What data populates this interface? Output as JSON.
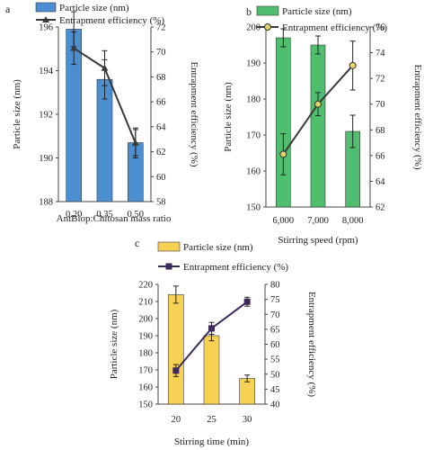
{
  "chart_data": [
    {
      "type": "bar",
      "panel_label": "a",
      "categories": [
        "0.20",
        "0.35",
        "0.50"
      ],
      "xlabel": "AntBiop:Chitosan mass ratio",
      "ylabel": "Particle size (nm)",
      "y2label": "Entrapment efficiency (%)",
      "ylim": [
        188,
        196
      ],
      "yticks": [
        188,
        190,
        192,
        194,
        196
      ],
      "y2lim": [
        58,
        72
      ],
      "y2ticks": [
        58,
        60,
        62,
        64,
        66,
        68,
        70,
        72
      ],
      "legend_position": "top",
      "series": [
        {
          "name": "Particle size (nm)",
          "kind": "bar",
          "axis": "left",
          "color": "#4b8fd1",
          "values": [
            195.9,
            193.6,
            190.7
          ],
          "errors": [
            0.8,
            0.9,
            0.6
          ]
        },
        {
          "name": "Entrapment efficiency (%)",
          "kind": "line",
          "axis": "right",
          "color": "#3a3a3a",
          "marker": "triangle",
          "values": [
            70.3,
            68.7,
            62.7
          ],
          "errors": [
            1.3,
            1.4,
            1.2
          ]
        }
      ]
    },
    {
      "type": "bar",
      "panel_label": "b",
      "categories": [
        "6,000",
        "7,000",
        "8,000"
      ],
      "xlabel": "Stirring speed (rpm)",
      "ylabel": "Particle size (nm)",
      "y2label": "Entrapment efficiency (%)",
      "ylim": [
        150,
        200
      ],
      "yticks": [
        150,
        160,
        170,
        180,
        190,
        200
      ],
      "y2lim": [
        62,
        76
      ],
      "y2ticks": [
        62,
        64,
        66,
        68,
        70,
        72,
        74,
        76
      ],
      "legend_position": "top",
      "series": [
        {
          "name": "Particle size (nm)",
          "kind": "bar",
          "axis": "left",
          "color": "#4fbf6f",
          "values": [
            197,
            195,
            171
          ],
          "errors": [
            2.5,
            2.5,
            4.5
          ]
        },
        {
          "name": "Entrapment efficiency (%)",
          "kind": "line",
          "axis": "right",
          "color": "#3a3a3a",
          "marker": "circle",
          "marker_color": "#e6d36a",
          "values": [
            66.1,
            70.0,
            73.0
          ],
          "errors": [
            1.6,
            0.9,
            1.9
          ]
        }
      ]
    },
    {
      "type": "bar",
      "panel_label": "c",
      "categories": [
        "20",
        "25",
        "30"
      ],
      "xlabel": "Stirring time (min)",
      "ylabel": "Particle size (nm)",
      "y2label": "Entrapment efficiency (%)",
      "ylim": [
        150,
        220
      ],
      "yticks": [
        150,
        160,
        170,
        180,
        190,
        200,
        210,
        220
      ],
      "y2lim": [
        40,
        80
      ],
      "y2ticks": [
        40,
        45,
        50,
        55,
        60,
        65,
        70,
        75,
        80
      ],
      "legend_position": "top",
      "series": [
        {
          "name": "Particle size (nm)",
          "kind": "bar",
          "axis": "left",
          "color": "#f7d154",
          "values": [
            214,
            190,
            165
          ],
          "errors": [
            5.0,
            3.0,
            2.0
          ]
        },
        {
          "name": "Entrapment efficiency (%)",
          "kind": "line",
          "axis": "right",
          "color": "#3b2a5a",
          "marker": "square",
          "values": [
            51.2,
            65.3,
            74.2
          ],
          "errors": [
            2.0,
            2.0,
            1.5
          ]
        }
      ]
    }
  ]
}
